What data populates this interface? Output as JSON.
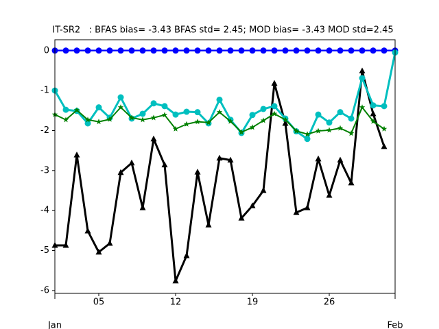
{
  "chart_data": {
    "type": "line",
    "title": "IT-SR2   : BFAS bias= -3.43 BFAS std= 2.45; MOD bias= -3.43 MOD std=2.45",
    "xlim": [
      1,
      32
    ],
    "ylim": [
      -6.07,
      0.27
    ],
    "yticks": [
      0,
      -1,
      -2,
      -3,
      -4,
      -5,
      -6
    ],
    "xticks": [
      {
        "value": 5,
        "label": "05"
      },
      {
        "value": 12,
        "label": "12"
      },
      {
        "value": 19,
        "label": "19"
      },
      {
        "value": 26,
        "label": "26"
      }
    ],
    "xticks_month": [
      {
        "value": 1,
        "label": "Jan"
      },
      {
        "value": 32,
        "label": "Feb"
      }
    ],
    "series": [
      {
        "color": "#0000ff",
        "marker": "circle",
        "linewidth": 2.5,
        "x": [
          1,
          2,
          3,
          4,
          5,
          6,
          7,
          8,
          9,
          10,
          11,
          12,
          13,
          14,
          15,
          16,
          17,
          18,
          19,
          20,
          21,
          22,
          23,
          24,
          25,
          26,
          27,
          28,
          29,
          30,
          31,
          32
        ],
        "values": [
          0,
          0,
          0,
          0,
          0,
          0,
          0,
          0,
          0,
          0,
          0,
          0,
          0,
          0,
          0,
          0,
          0,
          0,
          0,
          0,
          0,
          0,
          0,
          0,
          0,
          0,
          0,
          0,
          0,
          0,
          0,
          0
        ]
      },
      {
        "color": "#000000",
        "marker": "triangle",
        "linewidth": 3,
        "x": [
          1,
          2,
          3,
          4,
          5,
          6,
          7,
          8,
          9,
          10,
          11,
          12,
          13,
          14,
          15,
          16,
          17,
          18,
          19,
          20,
          21,
          22,
          23,
          24,
          25,
          26,
          27,
          28,
          29,
          30,
          31
        ],
        "values": [
          -4.87,
          -4.87,
          -2.61,
          -4.51,
          -5.04,
          -4.82,
          -3.05,
          -2.81,
          -3.93,
          -2.21,
          -2.86,
          -5.76,
          -5.13,
          -3.04,
          -4.36,
          -2.69,
          -2.74,
          -4.19,
          -3.88,
          -3.5,
          -0.82,
          -1.82,
          -4.05,
          -3.93,
          -2.71,
          -3.62,
          -2.74,
          -3.31,
          -0.51,
          -1.58,
          -2.4
        ]
      },
      {
        "color": "#00bfbf",
        "marker": "circle",
        "linewidth": 3,
        "x": [
          1,
          2,
          3,
          4,
          5,
          6,
          7,
          8,
          9,
          10,
          11,
          12,
          13,
          14,
          15,
          16,
          17,
          18,
          19,
          20,
          21,
          22,
          23,
          24,
          25,
          26,
          27,
          28,
          29,
          30,
          31,
          32
        ],
        "values": [
          -1.0,
          -1.48,
          -1.51,
          -1.82,
          -1.42,
          -1.68,
          -1.17,
          -1.7,
          -1.58,
          -1.32,
          -1.39,
          -1.6,
          -1.53,
          -1.54,
          -1.82,
          -1.23,
          -1.73,
          -2.06,
          -1.61,
          -1.46,
          -1.39,
          -1.7,
          -2.02,
          -2.21,
          -1.6,
          -1.8,
          -1.54,
          -1.7,
          -0.69,
          -1.37,
          -1.39,
          -0.05
        ]
      },
      {
        "color": "#008000",
        "marker": "star",
        "linewidth": 2,
        "x": [
          1,
          2,
          3,
          4,
          5,
          6,
          7,
          8,
          9,
          10,
          11,
          12,
          13,
          14,
          15,
          16,
          17,
          18,
          19,
          20,
          21,
          22,
          23,
          24,
          25,
          26,
          27,
          28,
          29,
          30,
          31
        ],
        "values": [
          -1.6,
          -1.73,
          -1.49,
          -1.73,
          -1.78,
          -1.72,
          -1.42,
          -1.68,
          -1.73,
          -1.68,
          -1.61,
          -1.96,
          -1.84,
          -1.78,
          -1.8,
          -1.54,
          -1.77,
          -2.04,
          -1.92,
          -1.75,
          -1.58,
          -1.73,
          -2.01,
          -2.09,
          -2.01,
          -1.99,
          -1.94,
          -2.07,
          -1.42,
          -1.77,
          -1.96
        ]
      }
    ]
  }
}
